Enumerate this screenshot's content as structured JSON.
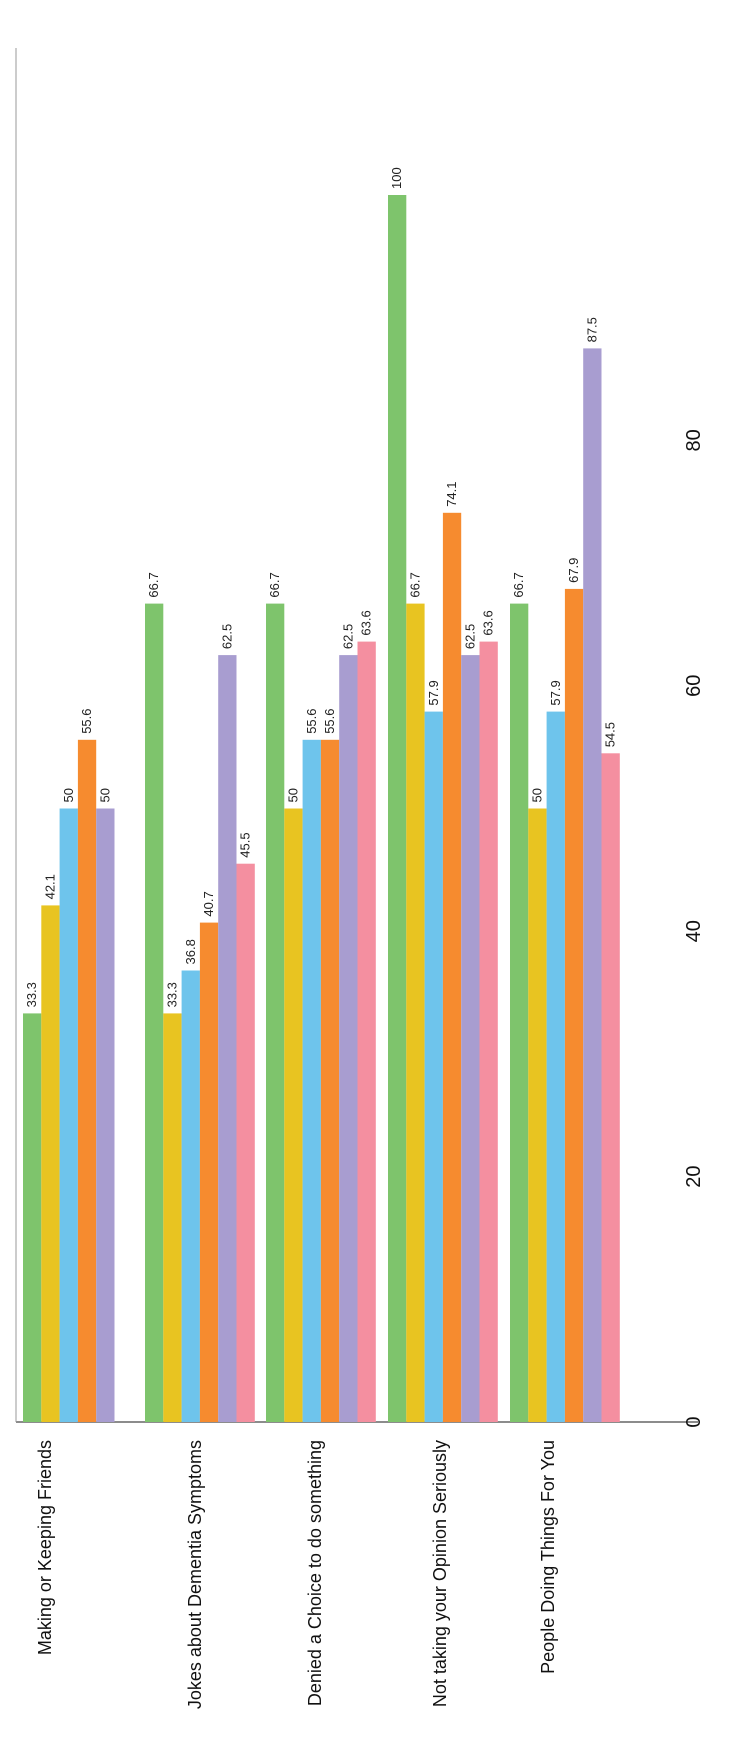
{
  "chart_data": {
    "type": "bar",
    "orientation": "vertical-rotated",
    "categories": [
      "Making or Keeping Friends",
      "Jokes about Dementia Symptoms",
      "Denied a Choice to do something",
      "Not taking your Opinion Seriously",
      "People Doing Things For You"
    ],
    "series": [
      {
        "color": "#7ec46c",
        "values": [
          33.3,
          66.7,
          66.7,
          100,
          66.7
        ]
      },
      {
        "color": "#e8c421",
        "values": [
          42.1,
          33.3,
          50,
          66.7,
          50
        ]
      },
      {
        "color": "#6ec4ec",
        "values": [
          50,
          36.8,
          55.6,
          57.9,
          57.9
        ]
      },
      {
        "color": "#f68b2f",
        "values": [
          55.6,
          40.7,
          55.6,
          74.1,
          67.9
        ]
      },
      {
        "color": "#a89dd0",
        "values": [
          50,
          62.5,
          62.5,
          62.5,
          87.5
        ]
      },
      {
        "color": "#f48fa0",
        "values": [
          null,
          45.5,
          63.6,
          63.6,
          54.5
        ]
      }
    ],
    "value_labels": [
      [
        "33.3",
        "42.1",
        "50",
        "55.6",
        "50",
        ""
      ],
      [
        "66.7",
        "33.3",
        "36.8",
        "40.7",
        "62.5",
        "45.5"
      ],
      [
        "66.7",
        "50",
        "55.6",
        "55.6",
        "62.5",
        "63.6"
      ],
      [
        "100",
        "66.7",
        "57.9",
        "74.1",
        "62.5",
        "63.6"
      ],
      [
        "66.7",
        "50",
        "57.9",
        "67.9",
        "87.5",
        "54.5"
      ]
    ],
    "axis_ticks": [
      "0",
      "20",
      "40",
      "60",
      "80"
    ],
    "axis_range": [
      0,
      100
    ],
    "grid": false,
    "legend": "none",
    "title": "",
    "xlabel": "",
    "ylabel": ""
  }
}
